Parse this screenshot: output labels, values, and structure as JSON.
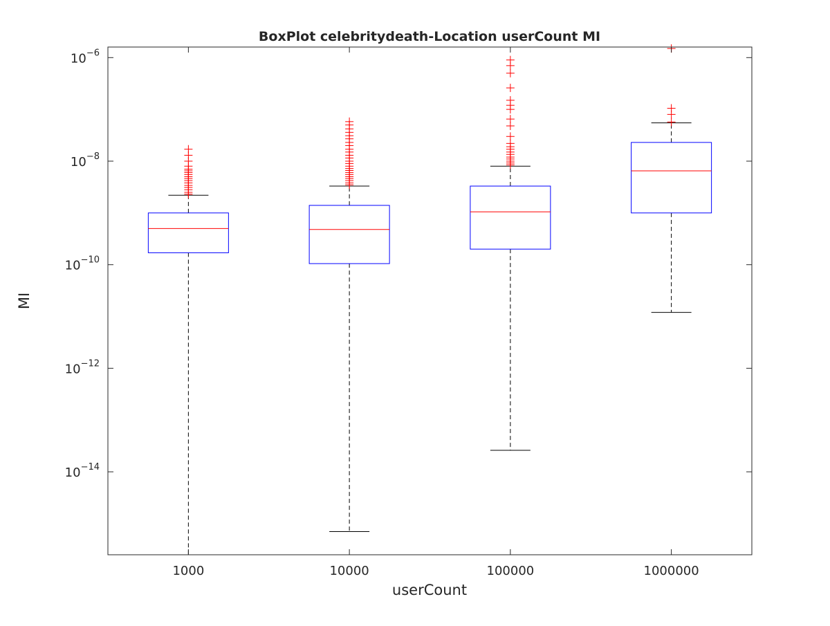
{
  "chart_data": {
    "type": "boxplot",
    "title": "BoxPlot celebritydeath-Location userCount MI",
    "xlabel": "userCount",
    "ylabel": "MI",
    "y_scale": "log",
    "ylim": [
      2.5e-16,
      1.6e-06
    ],
    "yticks": [
      {
        "value": 1e-14,
        "base": "10",
        "exp": "−14"
      },
      {
        "value": 1e-12,
        "base": "10",
        "exp": "−12"
      },
      {
        "value": 1e-10,
        "base": "10",
        "exp": "−10"
      },
      {
        "value": 1e-08,
        "base": "10",
        "exp": "−8"
      },
      {
        "value": 1e-06,
        "base": "10",
        "exp": "−6"
      }
    ],
    "categories": [
      "1000",
      "10000",
      "100000",
      "1000000"
    ],
    "boxes": [
      {
        "category": "1000",
        "whisker_low": 2.5e-16,
        "q1": 1.7e-10,
        "median": 5e-10,
        "q3": 1e-09,
        "whisker_high": 2.2e-09,
        "outliers": [
          2.3e-09,
          2.5e-09,
          2.8e-09,
          3.1e-09,
          3.4e-09,
          3.8e-09,
          4.2e-09,
          4.6e-09,
          5e-09,
          5.5e-09,
          6e-09,
          6.5e-09,
          7e-09,
          8e-09,
          1e-08,
          1.3e-08,
          1.7e-08
        ]
      },
      {
        "category": "10000",
        "whisker_low": 7e-16,
        "q1": 1.05e-10,
        "median": 4.8e-10,
        "q3": 1.4e-09,
        "whisker_high": 3.3e-09,
        "outliers": [
          3.5e-09,
          3.8e-09,
          4.2e-09,
          4.6e-09,
          5e-09,
          5.5e-09,
          6e-09,
          6.6e-09,
          7.2e-09,
          8e-09,
          9e-09,
          1e-08,
          1.15e-08,
          1.3e-08,
          1.5e-08,
          1.7e-08,
          2e-08,
          2.3e-08,
          2.7e-08,
          3.1e-08,
          3.6e-08,
          4.2e-08,
          5e-08,
          5.8e-08
        ]
      },
      {
        "category": "100000",
        "whisker_low": 2.6e-14,
        "q1": 2e-10,
        "median": 1.05e-09,
        "q3": 3.3e-09,
        "whisker_high": 8e-09,
        "outliers": [
          8.5e-09,
          9.2e-09,
          1e-08,
          1.1e-08,
          1.2e-08,
          1.35e-08,
          1.5e-08,
          1.7e-08,
          1.9e-08,
          2.2e-08,
          3e-08,
          4.8e-08,
          6.5e-08,
          1e-07,
          1.2e-07,
          1.5e-07,
          2.6e-07,
          5e-07,
          7e-07,
          9e-07
        ]
      },
      {
        "category": "1000000",
        "whisker_low": 1.2e-11,
        "q1": 1e-09,
        "median": 6.5e-09,
        "q3": 2.3e-08,
        "whisker_high": 5.5e-08,
        "outliers": [
          5.7e-08,
          8e-08,
          1.05e-07,
          1.5e-06
        ]
      }
    ],
    "colors": {
      "box": "#0000ff",
      "median": "#ff0000",
      "outlier": "#ff0000",
      "whisker": "#000000",
      "axes": "#262626"
    },
    "grid": false,
    "legend": "none"
  }
}
